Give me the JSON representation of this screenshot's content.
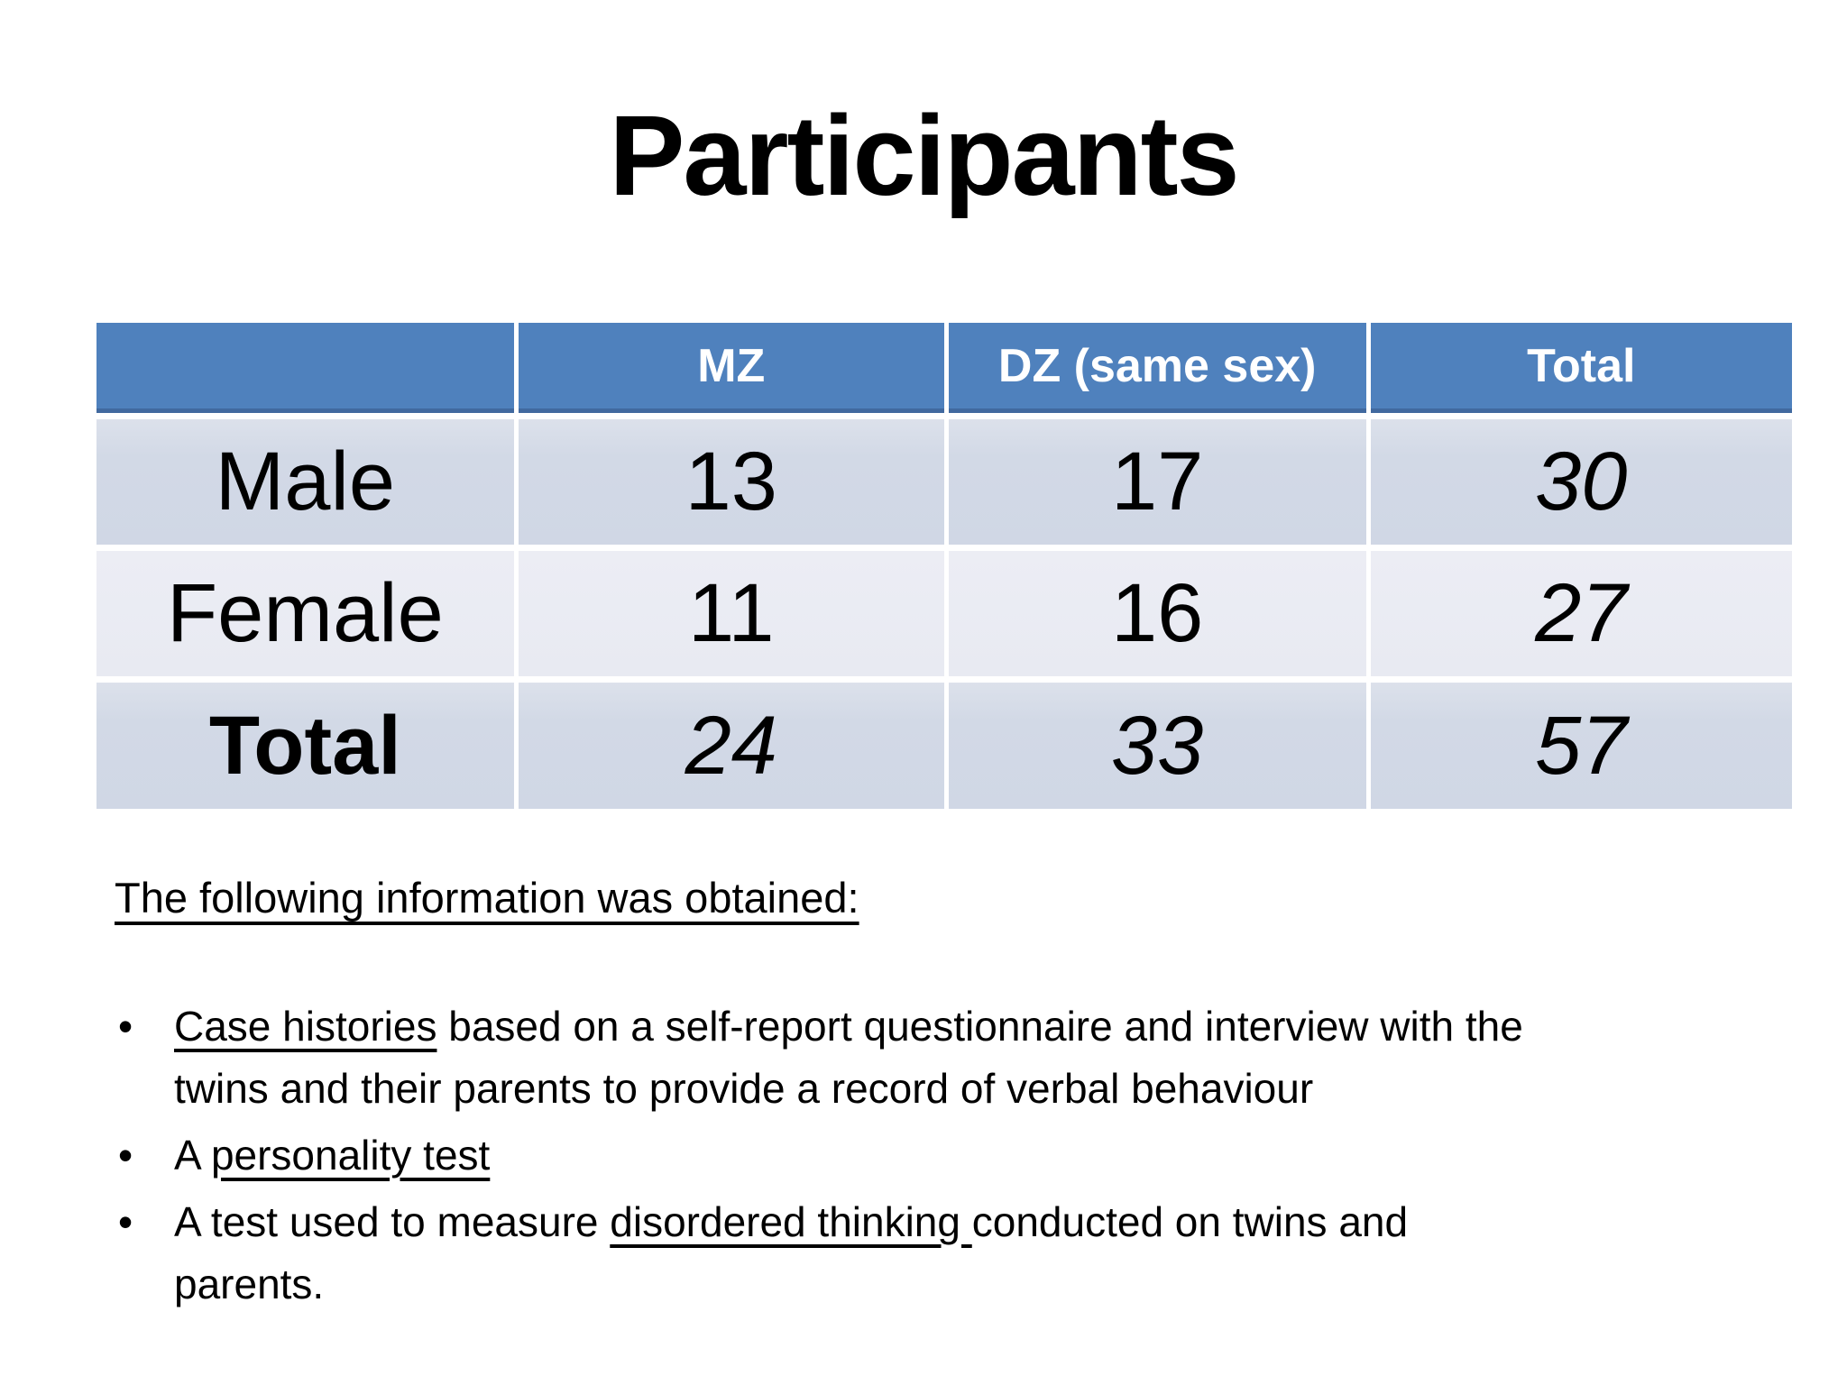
{
  "title": "Participants",
  "colors": {
    "header_bg": "#4f81bd",
    "header_border": "#41699f",
    "band_row_bg": "#d2d9e6",
    "alt_row_bg": "#e9ebf2",
    "header_text": "#ffffff",
    "body_text": "#000000"
  },
  "table": {
    "header": [
      "",
      "MZ",
      "DZ (same sex)",
      "Total"
    ],
    "rows": [
      {
        "cells": [
          "Male",
          "13",
          "17",
          "30"
        ]
      },
      {
        "cells": [
          "Female",
          "11",
          "16",
          "27"
        ]
      },
      {
        "cells": [
          "Total",
          "24",
          "33",
          "57"
        ]
      }
    ]
  },
  "chart_data": {
    "type": "table",
    "title": "Participants",
    "columns": [
      "",
      "MZ",
      "DZ (same sex)",
      "Total"
    ],
    "rows": [
      [
        "Male",
        13,
        17,
        30
      ],
      [
        "Female",
        11,
        16,
        27
      ],
      [
        "Total",
        24,
        33,
        57
      ]
    ]
  },
  "info": {
    "heading": "The following information was obtained:",
    "bullets": [
      {
        "lines": [
          {
            "segments": [
              {
                "t": "Case histories",
                "u": true
              },
              {
                "t": " based on a self-report questionnaire and interview with the",
                "u": false
              }
            ]
          },
          {
            "segments": [
              {
                "t": "twins and their parents to provide a record of verbal behaviour",
                "u": false
              }
            ]
          }
        ]
      },
      {
        "lines": [
          {
            "segments": [
              {
                "t": "A ",
                "u": false
              },
              {
                "t": "personality test",
                "u": true
              }
            ]
          }
        ]
      },
      {
        "lines": [
          {
            "segments": [
              {
                "t": "A test used to measure ",
                "u": false
              },
              {
                "t": "disordered thinking ",
                "u": true
              },
              {
                "t": "conducted on twins and",
                "u": false
              }
            ]
          },
          {
            "segments": [
              {
                "t": "parents.",
                "u": false
              }
            ]
          }
        ]
      }
    ]
  }
}
